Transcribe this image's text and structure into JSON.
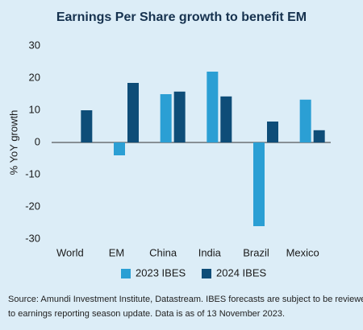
{
  "chart_data": {
    "type": "bar",
    "title": "Earnings Per Share growth to benefit EM",
    "y_label": "% YoY growth",
    "categories": [
      "World",
      "EM",
      "China",
      "India",
      "Brazil",
      "Mexico"
    ],
    "series": [
      {
        "name": "2023 IBES",
        "color": "#2b9fd4",
        "values": [
          null,
          -4,
          15,
          22,
          -26,
          13.3
        ]
      },
      {
        "name": "2024 IBES",
        "color": "#0e4d78",
        "values": [
          10,
          18.5,
          15.8,
          14.3,
          6.5,
          3.8
        ]
      }
    ],
    "ylim": [
      -30,
      30
    ],
    "yticks": [
      -30,
      -20,
      -10,
      0,
      10,
      20,
      30
    ],
    "legend": "bottom",
    "source": [
      "Source: Amundi Investment Institute, Datastream. IBES forecasts are subject to be reviewed due",
      "to earnings reporting season update. Data is as of 13 November 2023."
    ]
  }
}
